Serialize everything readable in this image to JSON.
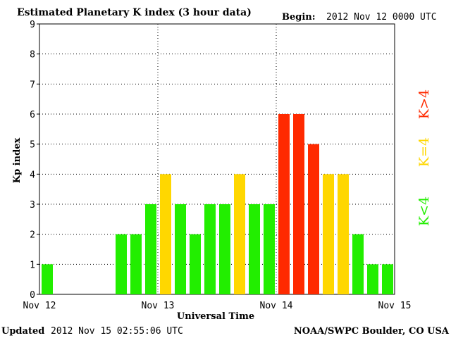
{
  "header": {
    "title": "Estimated Planetary K index (3 hour data)",
    "begin_label": "Begin:",
    "begin_value": "2012 Nov 12 0000 UTC"
  },
  "footer": {
    "updated_label": "Updated",
    "updated_value": "2012 Nov 15 02:55:06 UTC",
    "source": "NOAA/SWPC Boulder, CO USA"
  },
  "legend": {
    "below": {
      "text": "K<4",
      "color": "#22ee00"
    },
    "equal": {
      "text": "K=4",
      "color": "#ffd700"
    },
    "above": {
      "text": "K>4",
      "color": "#ff2a00"
    }
  },
  "colors": {
    "low": "#22ee00",
    "moderate": "#ffd700",
    "storm": "#ff2a00",
    "axis": "#000000",
    "grid": "#000000"
  },
  "chart_data": {
    "type": "bar",
    "title": "Estimated Planetary K index (3 hour data)",
    "xlabel": "Universal Time",
    "ylabel": "Kp index",
    "ylim": [
      0,
      9
    ],
    "yticks": [
      0,
      1,
      2,
      3,
      4,
      5,
      6,
      7,
      8,
      9
    ],
    "x_range": [
      "2012 Nov 12 0000 UTC",
      "2012 Nov 15 0000 UTC"
    ],
    "xticks": [
      {
        "label": "Nov 12",
        "day": 0
      },
      {
        "label": "Nov 13",
        "day": 1
      },
      {
        "label": "Nov 14",
        "day": 2
      },
      {
        "label": "Nov 15",
        "day": 3
      }
    ],
    "grid": true,
    "interval_hours": 3,
    "values": [
      1,
      null,
      null,
      null,
      null,
      2,
      2,
      3,
      4,
      3,
      2,
      3,
      3,
      4,
      3,
      3,
      6,
      6,
      5,
      4,
      4,
      2,
      1,
      1
    ]
  }
}
